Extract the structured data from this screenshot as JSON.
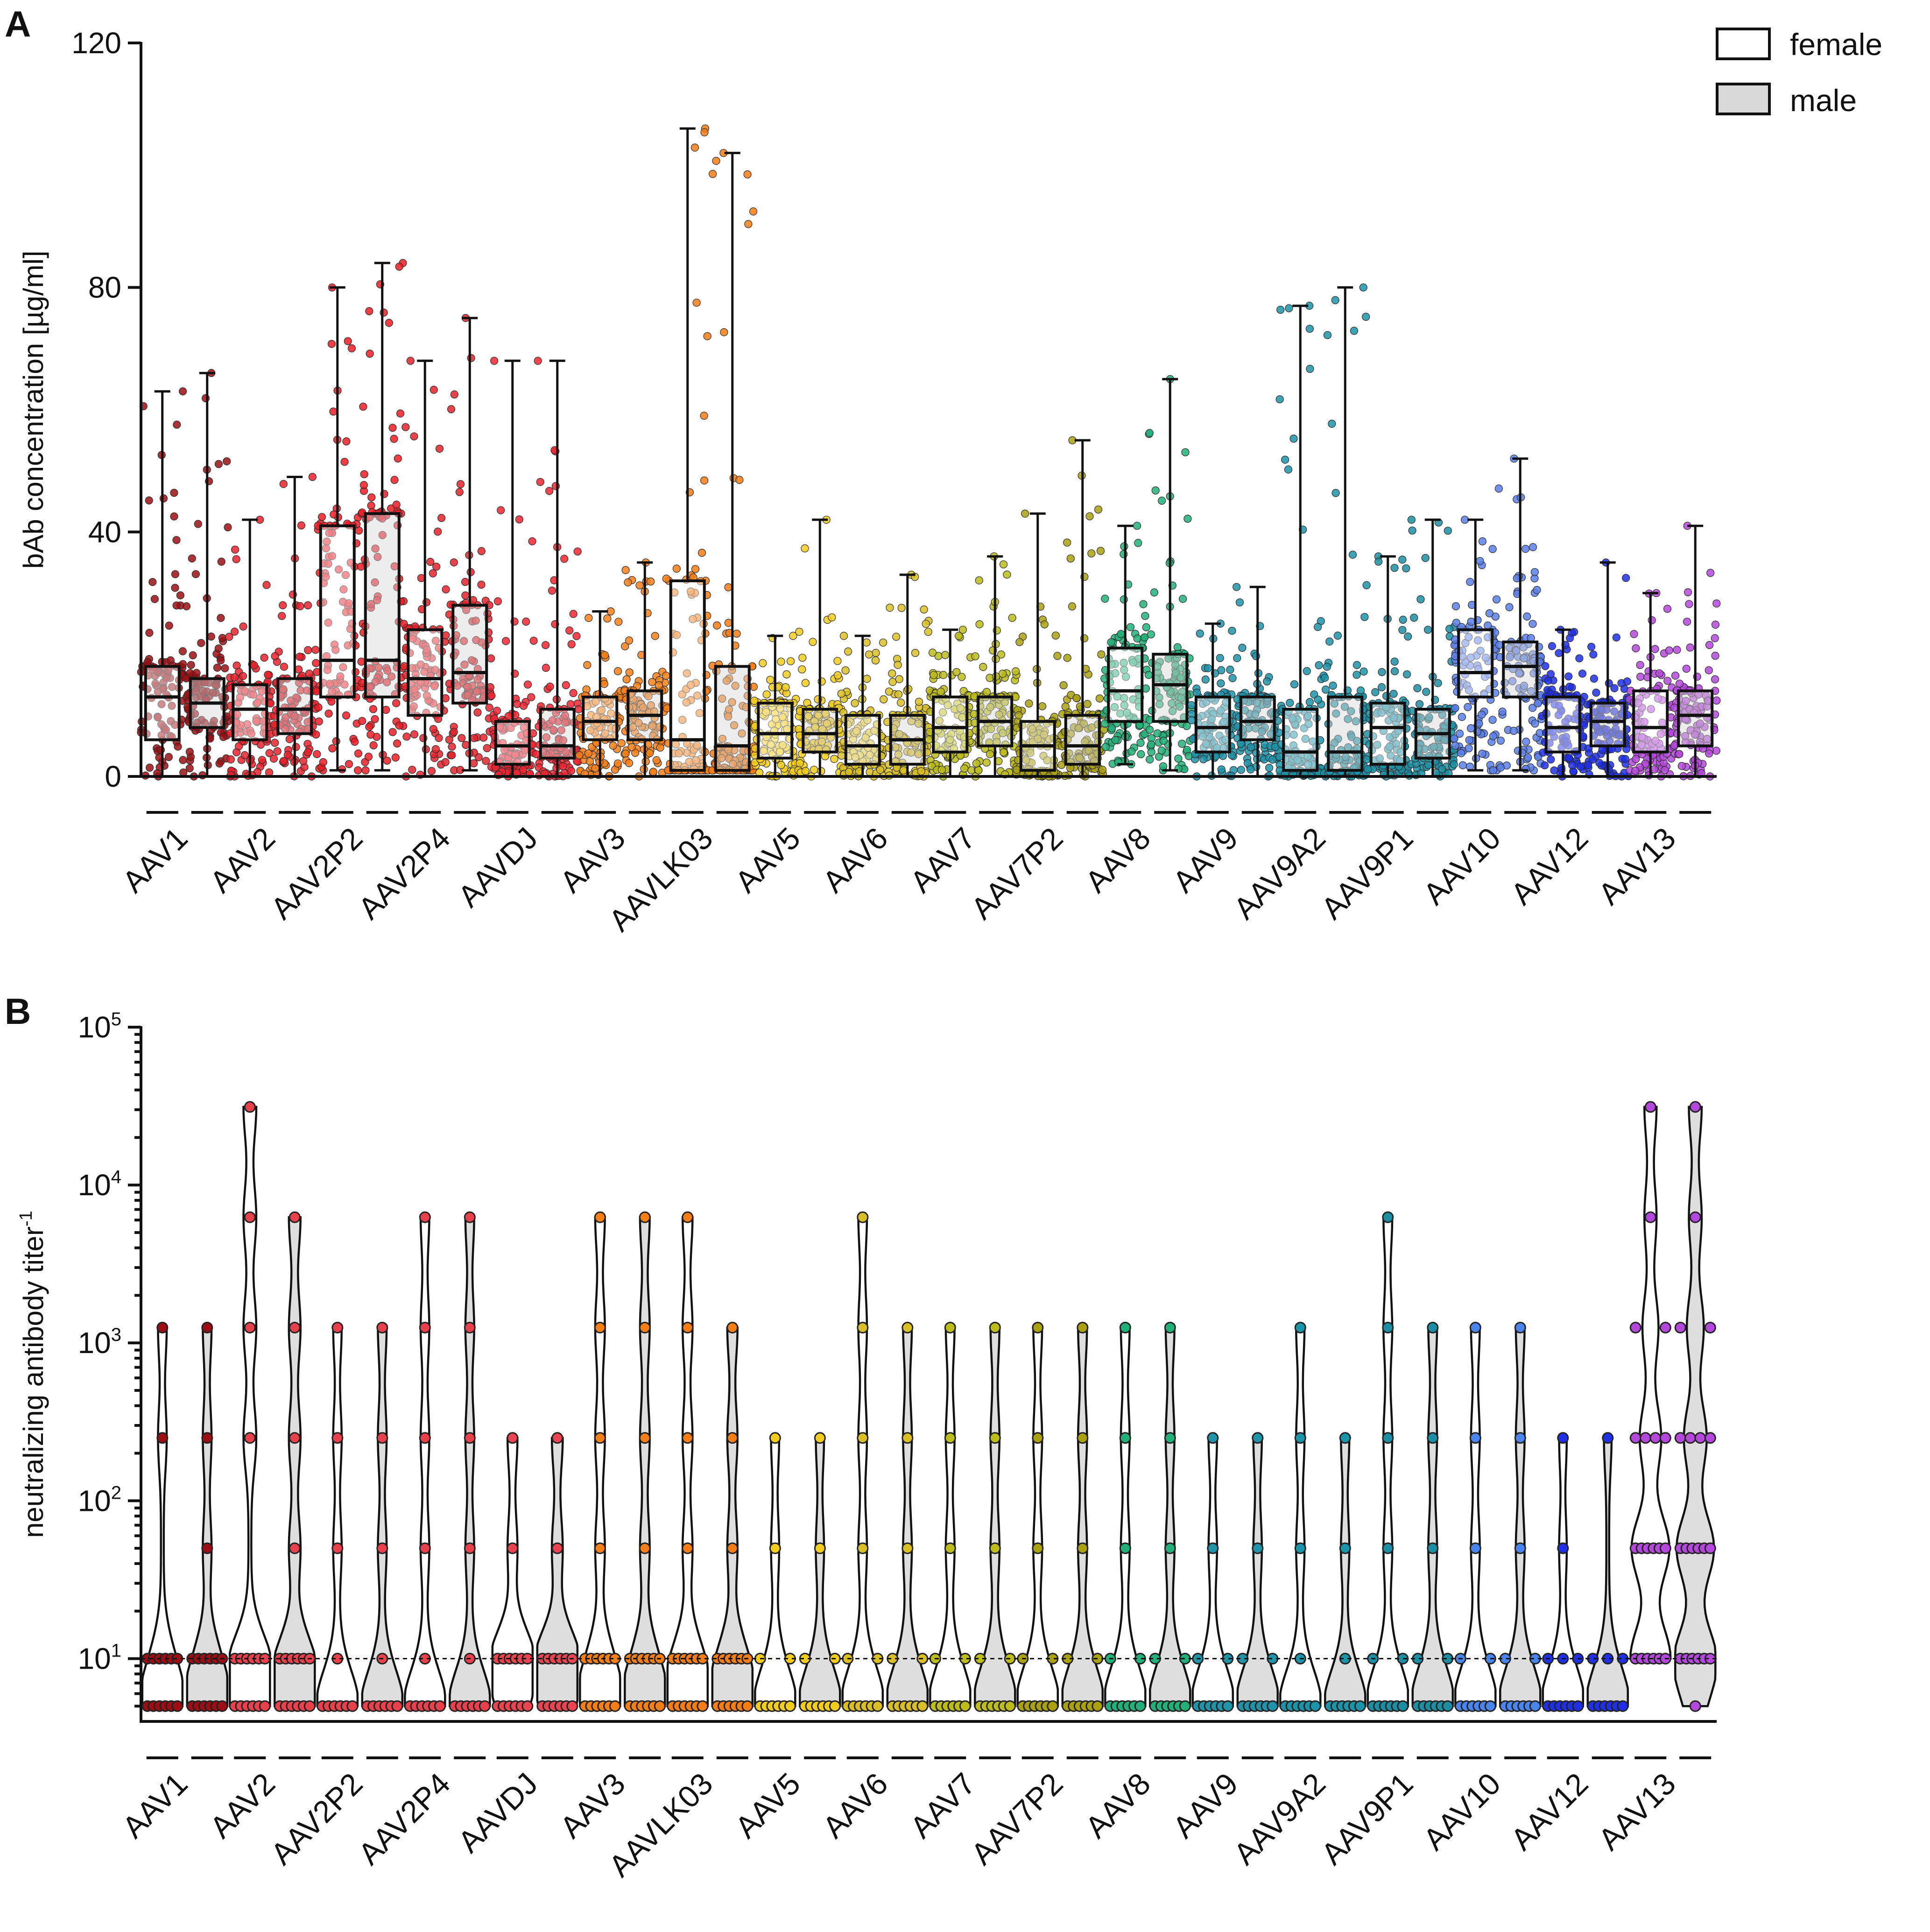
{
  "panels": {
    "a_label": "A",
    "b_label": "B"
  },
  "legend": {
    "female": "female",
    "male": "male",
    "female_fill": "#ffffff",
    "male_fill": "#d9d9d9"
  },
  "chart_data": [
    {
      "type": "box",
      "panel": "A",
      "ylabel": "bAb concentration [µg/ml]",
      "ylim": [
        0,
        120
      ],
      "yticks": [
        "0",
        "40",
        "80",
        "120"
      ],
      "categories": [
        "AAV1",
        "AAV2",
        "AAV2P2",
        "AAV2P4",
        "AAVDJ",
        "AAV3",
        "AAVLK03",
        "AAV5",
        "AAV6",
        "AAV7",
        "AAV7P2",
        "AAV8",
        "AAV9",
        "AAV9A2",
        "AAV9P1",
        "AAV10",
        "AAV12",
        "AAV13"
      ],
      "colors": [
        "#9b0f14",
        "#e8212b",
        "#ea1c24",
        "#e2232a",
        "#ee2431",
        "#f57f17",
        "#f57d14",
        "#f2cd1c",
        "#d9bf24",
        "#bcbc1a",
        "#aaa10f",
        "#22b07a",
        "#1f93a8",
        "#1b93a8",
        "#1c8ea3",
        "#5b7fe9",
        "#1f2fe6",
        "#b548dc"
      ],
      "series": [
        {
          "name": "female",
          "stats": [
            {
              "min": 0,
              "q1": 6,
              "median": 13,
              "q3": 18,
              "max": 63
            },
            {
              "min": 0,
              "q1": 6,
              "median": 11,
              "q3": 15,
              "max": 42
            },
            {
              "min": 1,
              "q1": 13,
              "median": 19,
              "q3": 41,
              "max": 80
            },
            {
              "min": 0,
              "q1": 10,
              "median": 16,
              "q3": 24,
              "max": 68
            },
            {
              "min": 0,
              "q1": 2,
              "median": 5,
              "q3": 9,
              "max": 68
            },
            {
              "min": 0,
              "q1": 6,
              "median": 9,
              "q3": 13,
              "max": 27
            },
            {
              "min": 1,
              "q1": 1,
              "median": 6,
              "q3": 32,
              "max": 106
            },
            {
              "min": 0,
              "q1": 3,
              "median": 7,
              "q3": 12,
              "max": 23
            },
            {
              "min": 0,
              "q1": 2,
              "median": 5,
              "q3": 10,
              "max": 23
            },
            {
              "min": 0,
              "q1": 4,
              "median": 8,
              "q3": 13,
              "max": 24
            },
            {
              "min": 0,
              "q1": 1,
              "median": 5,
              "q3": 9,
              "max": 43
            },
            {
              "min": 2,
              "q1": 9,
              "median": 14,
              "q3": 21,
              "max": 41
            },
            {
              "min": 0,
              "q1": 4,
              "median": 8,
              "q3": 13,
              "max": 25
            },
            {
              "min": 0,
              "q1": 1,
              "median": 4,
              "q3": 11,
              "max": 77
            },
            {
              "min": 0,
              "q1": 2,
              "median": 8,
              "q3": 12,
              "max": 36
            },
            {
              "min": 1,
              "q1": 13,
              "median": 17,
              "q3": 24,
              "max": 42
            },
            {
              "min": 0,
              "q1": 4,
              "median": 8,
              "q3": 13,
              "max": 24
            },
            {
              "min": 0,
              "q1": 4,
              "median": 8,
              "q3": 14,
              "max": 30
            }
          ]
        },
        {
          "name": "male",
          "stats": [
            {
              "min": 0,
              "q1": 8,
              "median": 12,
              "q3": 16,
              "max": 66
            },
            {
              "min": 0,
              "q1": 7,
              "median": 11,
              "q3": 16,
              "max": 49
            },
            {
              "min": 1,
              "q1": 13,
              "median": 19,
              "q3": 43,
              "max": 84
            },
            {
              "min": 1,
              "q1": 12,
              "median": 17,
              "q3": 28,
              "max": 75
            },
            {
              "min": 0,
              "q1": 3,
              "median": 5,
              "q3": 11,
              "max": 68
            },
            {
              "min": 0,
              "q1": 6,
              "median": 10,
              "q3": 14,
              "max": 35
            },
            {
              "min": 1,
              "q1": 1,
              "median": 5,
              "q3": 18,
              "max": 102
            },
            {
              "min": 0,
              "q1": 4,
              "median": 7,
              "q3": 11,
              "max": 42
            },
            {
              "min": 0,
              "q1": 2,
              "median": 6,
              "q3": 10,
              "max": 33
            },
            {
              "min": 0,
              "q1": 5,
              "median": 9,
              "q3": 13,
              "max": 36
            },
            {
              "min": 0,
              "q1": 2,
              "median": 5,
              "q3": 10,
              "max": 55
            },
            {
              "min": 1,
              "q1": 9,
              "median": 15,
              "q3": 20,
              "max": 65
            },
            {
              "min": 0,
              "q1": 6,
              "median": 9,
              "q3": 13,
              "max": 31
            },
            {
              "min": 0,
              "q1": 1,
              "median": 4,
              "q3": 13,
              "max": 80
            },
            {
              "min": 0,
              "q1": 3,
              "median": 7,
              "q3": 11,
              "max": 42
            },
            {
              "min": 1,
              "q1": 13,
              "median": 18,
              "q3": 22,
              "max": 52
            },
            {
              "min": 0,
              "q1": 5,
              "median": 9,
              "q3": 12,
              "max": 35
            },
            {
              "min": 0,
              "q1": 5,
              "median": 10,
              "q3": 14,
              "max": 41
            }
          ]
        }
      ]
    },
    {
      "type": "violin",
      "panel": "B",
      "ylabel": "neutralizing antibody titer",
      "ylabel_sup": "-1",
      "yscale": "log",
      "ylim": [
        4,
        100000
      ],
      "yticks": [
        {
          "value": 10,
          "base": "10",
          "exp": "1"
        },
        {
          "value": 100,
          "base": "10",
          "exp": "2"
        },
        {
          "value": 1000,
          "base": "10",
          "exp": "3"
        },
        {
          "value": 10000,
          "base": "10",
          "exp": "4"
        },
        {
          "value": 100000,
          "base": "10",
          "exp": "5"
        }
      ],
      "reference_line": 10,
      "titer_levels": [
        5,
        10,
        50,
        250,
        1250,
        6250,
        31250
      ],
      "categories": [
        "AAV1",
        "AAV2",
        "AAV2P2",
        "AAV2P4",
        "AAVDJ",
        "AAV3",
        "AAVLK03",
        "AAV5",
        "AAV6",
        "AAV7",
        "AAV7P2",
        "AAV8",
        "AAV9",
        "AAV9A2",
        "AAV9P1",
        "AAV10",
        "AAV12",
        "AAV13"
      ],
      "colors": [
        "#9b0f14",
        "#e8414c",
        "#e8414c",
        "#e8414c",
        "#ea4450",
        "#f57f17",
        "#f57d14",
        "#f2cd1c",
        "#d9bf24",
        "#bcbc1a",
        "#aaa10f",
        "#22b07a",
        "#1f93a8",
        "#1b93a8",
        "#1c8ea3",
        "#4a84ee",
        "#1f2fe6",
        "#b548dc"
      ],
      "series": [
        {
          "name": "female",
          "counts": [
            [
              40,
              6,
              0,
              1,
              1,
              0,
              0
            ],
            [
              14,
              9,
              0,
              1,
              1,
              1,
              1
            ],
            [
              44,
              1,
              1,
              1,
              1,
              0,
              0
            ],
            [
              42,
              1,
              1,
              1,
              1,
              1,
              0
            ],
            [
              8,
              28,
              1,
              1,
              0,
              0,
              0
            ],
            [
              30,
              6,
              1,
              1,
              1,
              1,
              0
            ],
            [
              28,
              10,
              1,
              1,
              1,
              1,
              0
            ],
            [
              50,
              2,
              1,
              1,
              0,
              0,
              0
            ],
            [
              42,
              2,
              1,
              1,
              1,
              1,
              0
            ],
            [
              40,
              2,
              1,
              1,
              1,
              0,
              0
            ],
            [
              40,
              2,
              1,
              1,
              1,
              0,
              0
            ],
            [
              40,
              2,
              1,
              1,
              1,
              0,
              0
            ],
            [
              44,
              2,
              1,
              1,
              0,
              0,
              0
            ],
            [
              46,
              1,
              1,
              1,
              1,
              0,
              0
            ],
            [
              40,
              2,
              1,
              1,
              1,
              1,
              0
            ],
            [
              40,
              2,
              1,
              1,
              1,
              0,
              0
            ],
            [
              60,
              3,
              1,
              1,
              0,
              0,
              0
            ],
            [
              0,
              16,
              14,
              4,
              2,
              1,
              1
            ]
          ]
        },
        {
          "name": "male",
          "counts": [
            [
              40,
              8,
              1,
              1,
              1,
              0,
              0
            ],
            [
              18,
              10,
              1,
              1,
              1,
              1,
              0
            ],
            [
              40,
              1,
              1,
              1,
              1,
              0,
              0
            ],
            [
              40,
              1,
              1,
              1,
              1,
              1,
              0
            ],
            [
              8,
              22,
              1,
              1,
              0,
              0,
              0
            ],
            [
              30,
              6,
              1,
              1,
              1,
              1,
              0
            ],
            [
              26,
              8,
              1,
              1,
              1,
              0,
              0
            ],
            [
              48,
              2,
              1,
              1,
              0,
              0,
              0
            ],
            [
              40,
              2,
              1,
              1,
              1,
              0,
              0
            ],
            [
              38,
              2,
              1,
              1,
              1,
              0,
              0
            ],
            [
              38,
              2,
              1,
              1,
              1,
              0,
              0
            ],
            [
              40,
              2,
              1,
              1,
              1,
              0,
              0
            ],
            [
              44,
              2,
              1,
              1,
              0,
              0,
              0
            ],
            [
              46,
              1,
              1,
              1,
              0,
              0,
              0
            ],
            [
              40,
              2,
              1,
              1,
              1,
              0,
              0
            ],
            [
              40,
              2,
              1,
              1,
              1,
              0,
              0
            ],
            [
              60,
              3,
              0,
              1,
              0,
              0,
              0
            ],
            [
              1,
              14,
              12,
              4,
              2,
              1,
              1
            ]
          ]
        }
      ]
    }
  ]
}
